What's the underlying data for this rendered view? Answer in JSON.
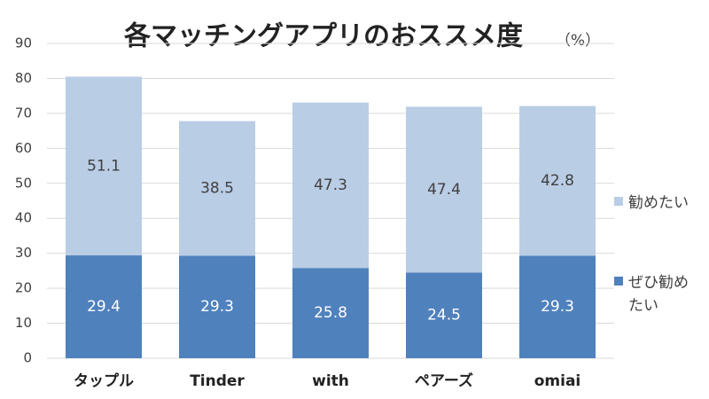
{
  "chart_data": {
    "type": "stacked_bar",
    "title": "各マッチングアプリのおススメ度",
    "unit": "（%）",
    "categories": [
      "タップル",
      "Tinder",
      "with",
      "ペアーズ",
      "omiai"
    ],
    "series": [
      {
        "name": "ぜひ勧めたい",
        "color": "#4f81bd",
        "values": [
          29.4,
          29.3,
          25.8,
          24.5,
          29.3
        ]
      },
      {
        "name": "勧めたい",
        "color": "#b9cde5",
        "values": [
          51.1,
          38.5,
          47.3,
          47.4,
          42.8
        ]
      }
    ],
    "ylim": [
      0,
      90
    ],
    "yticks": [
      0,
      10,
      20,
      30,
      40,
      50,
      60,
      70,
      80,
      90
    ],
    "grid": true
  }
}
